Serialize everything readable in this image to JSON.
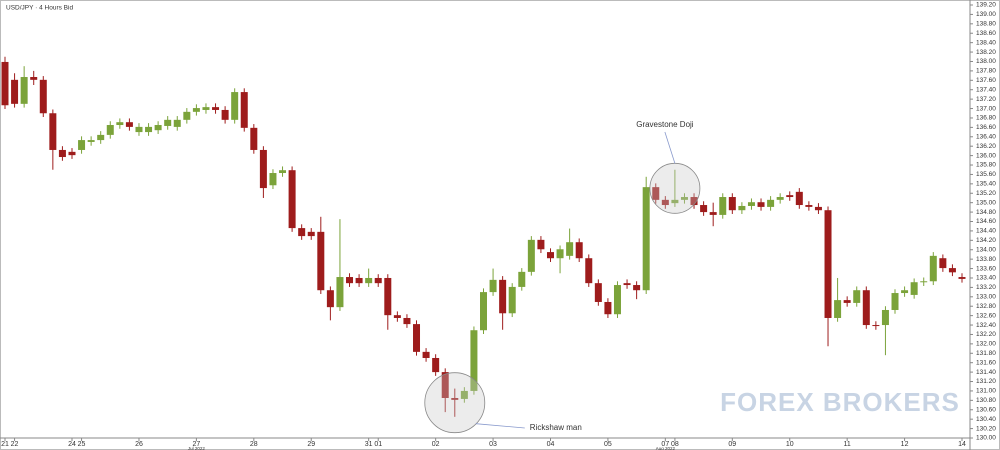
{
  "chart_data": {
    "type": "candlestick",
    "title": "USD/JPY · 4 Hours Bid",
    "watermark": "FOREX BROKERS",
    "up_color": "#7ba33a",
    "down_color": "#9e1c1c",
    "categories": [
      "21",
      "22",
      null,
      null,
      null,
      null,
      null,
      "24",
      "25",
      null,
      null,
      null,
      null,
      null,
      "26",
      null,
      null,
      null,
      null,
      null,
      "27",
      null,
      null,
      null,
      null,
      null,
      "28",
      null,
      null,
      null,
      null,
      null,
      "29",
      null,
      null,
      null,
      null,
      null,
      "31",
      "01",
      null,
      null,
      null,
      null,
      null,
      "02",
      null,
      null,
      null,
      null,
      null,
      "03",
      null,
      null,
      null,
      null,
      null,
      "04",
      null,
      null,
      null,
      null,
      null,
      "05",
      null,
      null,
      null,
      null,
      null,
      "07",
      "08",
      null,
      null,
      null,
      null,
      null,
      "09",
      null,
      null,
      null,
      null,
      null,
      "10",
      null,
      null,
      null,
      null,
      null,
      "11",
      null,
      null,
      null,
      null,
      null,
      "12",
      null,
      null,
      null,
      null,
      null,
      "14"
    ],
    "months": [
      null,
      null,
      null,
      null,
      null,
      null,
      null,
      null,
      null,
      null,
      null,
      null,
      null,
      null,
      null,
      null,
      null,
      null,
      null,
      null,
      "Jul 2022",
      null,
      null,
      null,
      null,
      null,
      null,
      null,
      null,
      null,
      null,
      null,
      null,
      null,
      null,
      null,
      null,
      null,
      null,
      null,
      null,
      null,
      null,
      null,
      null,
      null,
      null,
      null,
      null,
      null,
      null,
      null,
      null,
      null,
      null,
      null,
      null,
      null,
      null,
      null,
      null,
      null,
      null,
      null,
      null,
      null,
      null,
      null,
      null,
      "Aug 2022",
      null,
      null,
      null,
      null,
      null,
      null,
      null,
      null,
      null,
      null,
      null,
      null,
      null,
      null,
      null,
      null,
      null,
      null,
      null,
      null,
      null,
      null,
      null,
      null,
      null,
      null,
      null,
      null,
      null,
      null,
      null
    ],
    "open": [
      137.99,
      137.61,
      137.1,
      137.67,
      137.61,
      136.9,
      136.12,
      136.08,
      136.12,
      136.29,
      136.33,
      136.44,
      136.65,
      136.71,
      136.5,
      136.5,
      136.54,
      136.63,
      136.61,
      136.76,
      136.93,
      136.97,
      137.03,
      136.97,
      136.76,
      137.35,
      136.59,
      136.12,
      135.37,
      135.63,
      135.69,
      134.46,
      134.38,
      134.38,
      133.14,
      132.78,
      133.42,
      133.4,
      133.29,
      133.4,
      133.4,
      132.61,
      132.55,
      132.42,
      131.83,
      131.7,
      131.4,
      130.85,
      130.83,
      131.0,
      132.29,
      133.1,
      133.36,
      132.65,
      133.21,
      133.53,
      134.21,
      133.95,
      133.82,
      133.87,
      134.16,
      133.82,
      133.29,
      132.89,
      132.63,
      133.29,
      133.25,
      133.14,
      135.33,
      135.06,
      134.99,
      135.06,
      135.12,
      134.95,
      134.8,
      134.74,
      135.12,
      134.84,
      134.93,
      135.01,
      134.91,
      135.06,
      135.16,
      135.23,
      134.95,
      134.91,
      134.84,
      132.55,
      132.93,
      132.87,
      133.14,
      132.4,
      132.4,
      132.72,
      133.08,
      133.04,
      133.31,
      133.33,
      133.82,
      133.61,
      133.42
    ],
    "high": [
      138.1,
      137.75,
      137.9,
      137.8,
      137.69,
      136.98,
      136.2,
      136.16,
      136.41,
      136.41,
      136.52,
      136.73,
      136.79,
      136.79,
      136.69,
      136.69,
      136.73,
      136.84,
      136.84,
      137.01,
      137.09,
      137.11,
      137.11,
      137.05,
      137.43,
      137.43,
      136.67,
      136.2,
      135.71,
      135.77,
      135.77,
      134.54,
      134.46,
      134.7,
      133.22,
      134.65,
      133.5,
      133.48,
      133.6,
      133.48,
      133.48,
      132.69,
      132.63,
      132.5,
      131.91,
      131.78,
      131.48,
      131.05,
      131.08,
      132.37,
      133.18,
      133.6,
      133.44,
      133.29,
      133.61,
      134.29,
      134.29,
      134.03,
      134.09,
      134.45,
      134.24,
      133.9,
      133.37,
      132.97,
      133.33,
      133.37,
      133.33,
      135.55,
      135.41,
      135.14,
      135.7,
      135.2,
      135.2,
      135.03,
      135.0,
      135.2,
      135.2,
      135.01,
      135.09,
      135.09,
      135.14,
      135.2,
      135.24,
      135.31,
      135.03,
      134.99,
      134.92,
      133.4,
      133.01,
      133.22,
      133.22,
      132.48,
      132.8,
      133.16,
      133.22,
      133.39,
      133.41,
      133.95,
      133.9,
      133.69,
      133.5
    ],
    "low": [
      136.99,
      137.02,
      137.02,
      137.5,
      136.82,
      135.7,
      135.89,
      135.93,
      136.04,
      136.21,
      136.25,
      136.36,
      136.57,
      136.53,
      136.42,
      136.42,
      136.46,
      136.55,
      136.53,
      136.68,
      136.85,
      136.89,
      136.89,
      136.68,
      136.68,
      136.51,
      136.04,
      135.1,
      135.29,
      135.55,
      134.38,
      134.21,
      134.21,
      133.06,
      132.5,
      132.7,
      133.21,
      133.21,
      133.21,
      133.21,
      132.3,
      132.47,
      132.34,
      131.75,
      131.62,
      131.32,
      130.55,
      130.45,
      130.75,
      130.92,
      132.21,
      133.02,
      132.3,
      132.57,
      133.13,
      133.45,
      133.93,
      133.74,
      133.5,
      133.79,
      133.74,
      133.21,
      132.81,
      132.55,
      132.55,
      133.17,
      132.95,
      133.06,
      134.98,
      134.87,
      134.91,
      134.98,
      134.87,
      134.72,
      134.5,
      134.66,
      134.76,
      134.76,
      134.85,
      134.83,
      134.83,
      134.98,
      135.04,
      134.87,
      134.83,
      134.76,
      131.95,
      132.47,
      132.79,
      132.79,
      132.32,
      132.3,
      131.76,
      132.64,
      133.0,
      132.96,
      133.23,
      133.25,
      133.53,
      133.44,
      133.3
    ],
    "close": [
      137.07,
      137.1,
      137.67,
      137.61,
      136.9,
      136.12,
      135.97,
      136.01,
      136.33,
      136.33,
      136.44,
      136.65,
      136.71,
      136.61,
      136.61,
      136.61,
      136.65,
      136.76,
      136.76,
      136.93,
      137.01,
      137.03,
      136.97,
      136.76,
      137.35,
      136.59,
      136.12,
      135.31,
      135.63,
      135.69,
      134.46,
      134.29,
      134.29,
      133.14,
      132.78,
      133.42,
      133.29,
      133.29,
      133.4,
      133.29,
      132.61,
      132.55,
      132.42,
      131.83,
      131.7,
      131.4,
      130.85,
      130.81,
      131.0,
      132.29,
      133.1,
      133.36,
      132.65,
      133.21,
      133.53,
      134.21,
      134.01,
      133.82,
      134.01,
      134.16,
      133.82,
      133.29,
      132.89,
      132.63,
      133.25,
      133.25,
      133.14,
      135.33,
      135.06,
      134.95,
      135.06,
      135.12,
      134.95,
      134.8,
      134.74,
      135.12,
      134.84,
      134.93,
      135.01,
      134.91,
      135.06,
      135.12,
      135.12,
      134.95,
      134.91,
      134.84,
      132.55,
      132.93,
      132.87,
      133.14,
      132.4,
      132.38,
      132.72,
      133.08,
      133.14,
      133.31,
      133.33,
      133.87,
      133.61,
      133.52,
      133.38
    ],
    "annotations": [
      {
        "text": "Gravestone Doji",
        "candle": 70
      },
      {
        "text": "Rickshaw man",
        "candle": 47
      }
    ],
    "ylim": [
      130.0,
      139.2
    ],
    "yticks": [
      {
        "value": 130.0,
        "label": "130.00"
      },
      {
        "value": 130.2,
        "label": "130.20"
      },
      {
        "value": 130.4,
        "label": "130.40"
      },
      {
        "value": 130.6,
        "label": "130.60"
      },
      {
        "value": 130.8,
        "label": "130.80"
      },
      {
        "value": 131.0,
        "label": "131.00"
      },
      {
        "value": 131.2,
        "label": "131.20"
      },
      {
        "value": 131.4,
        "label": "131.40"
      },
      {
        "value": 131.6,
        "label": "131.60"
      },
      {
        "value": 131.8,
        "label": "131.80"
      },
      {
        "value": 132.0,
        "label": "132.00"
      },
      {
        "value": 132.2,
        "label": "132.20"
      },
      {
        "value": 132.4,
        "label": "132.40"
      },
      {
        "value": 132.6,
        "label": "132.60"
      },
      {
        "value": 132.8,
        "label": "132.80"
      },
      {
        "value": 133.0,
        "label": "133.00"
      },
      {
        "value": 133.2,
        "label": "133.20"
      },
      {
        "value": 133.4,
        "label": "133.40"
      },
      {
        "value": 133.6,
        "label": "133.60"
      },
      {
        "value": 133.8,
        "label": "133.80"
      },
      {
        "value": 134.0,
        "label": "134.00"
      },
      {
        "value": 134.2,
        "label": "134.20"
      },
      {
        "value": 134.4,
        "label": "134.40"
      },
      {
        "value": 134.6,
        "label": "134.60"
      },
      {
        "value": 134.8,
        "label": "134.80"
      },
      {
        "value": 135.0,
        "label": "135.00"
      },
      {
        "value": 135.2,
        "label": "135.20"
      },
      {
        "value": 135.4,
        "label": "135.40"
      },
      {
        "value": 135.6,
        "label": "135.60"
      },
      {
        "value": 135.8,
        "label": "135.80"
      },
      {
        "value": 136.0,
        "label": "136.00"
      },
      {
        "value": 136.2,
        "label": "136.20"
      },
      {
        "value": 136.4,
        "label": "136.40"
      },
      {
        "value": 136.6,
        "label": "136.60"
      },
      {
        "value": 136.8,
        "label": "136.80"
      },
      {
        "value": 137.0,
        "label": "137.00"
      },
      {
        "value": 137.2,
        "label": "137.20"
      },
      {
        "value": 137.4,
        "label": "137.40"
      },
      {
        "value": 137.6,
        "label": "137.60"
      },
      {
        "value": 137.8,
        "label": "137.80"
      },
      {
        "value": 138.0,
        "label": "138.00"
      },
      {
        "value": 138.2,
        "label": "138.20"
      },
      {
        "value": 138.4,
        "label": "138.40"
      },
      {
        "value": 138.6,
        "label": "138.60"
      },
      {
        "value": 138.8,
        "label": "138.80"
      },
      {
        "value": 139.0,
        "label": "139.00"
      },
      {
        "value": 139.2,
        "label": "139.20"
      }
    ]
  }
}
